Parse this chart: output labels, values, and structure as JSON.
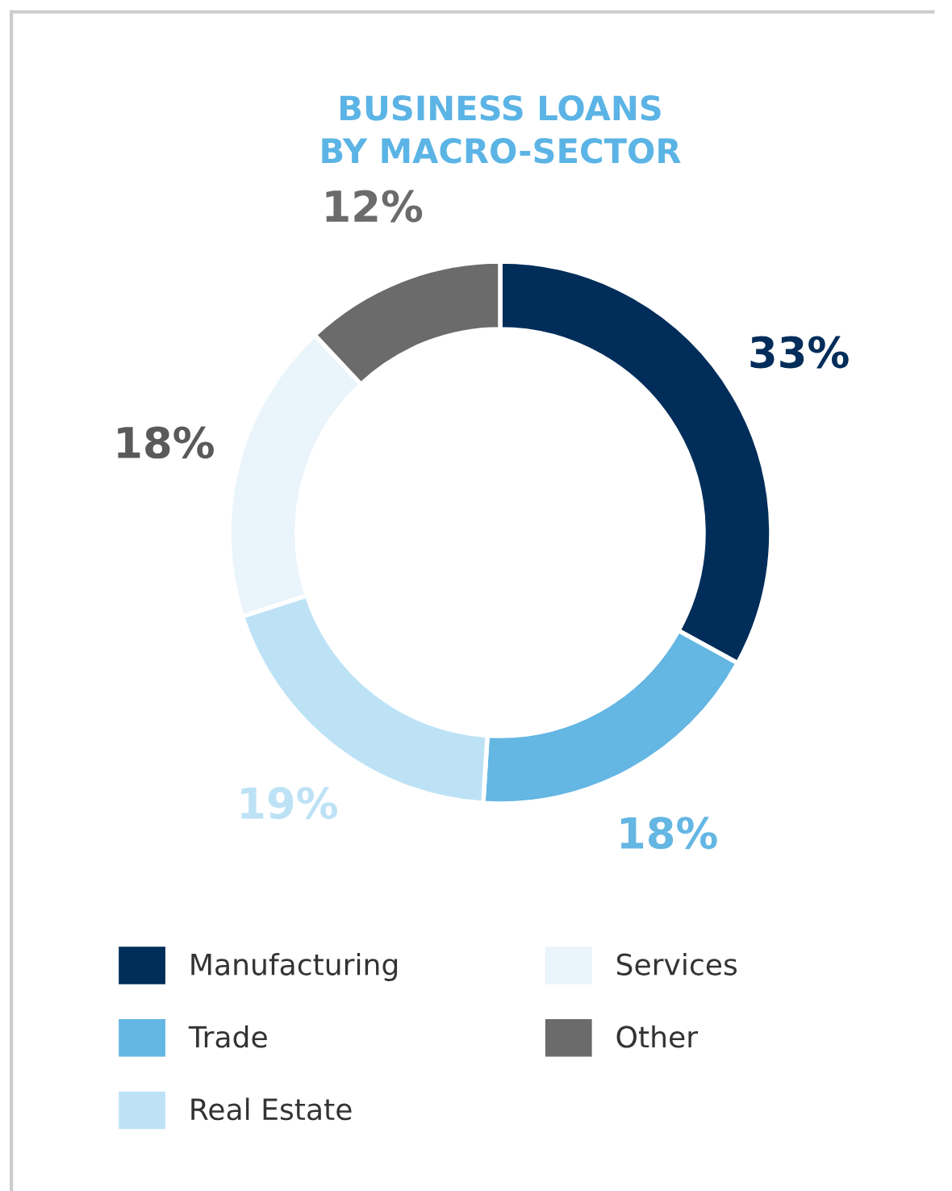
{
  "chart_data": {
    "type": "donut",
    "title": "BUSINESS LOANS\nBY MACRO-SECTOR",
    "categories": [
      "Manufacturing",
      "Trade",
      "Real Estate",
      "Services",
      "Other"
    ],
    "values": [
      33,
      18,
      19,
      18,
      12
    ],
    "colors": [
      "#002d5a",
      "#64b6e3",
      "#bde2f6",
      "#e9f4fb",
      "#6b6b6b"
    ],
    "value_labels": [
      "33%",
      "18%",
      "19%",
      "18%",
      "12%"
    ],
    "legend": "bottom"
  }
}
